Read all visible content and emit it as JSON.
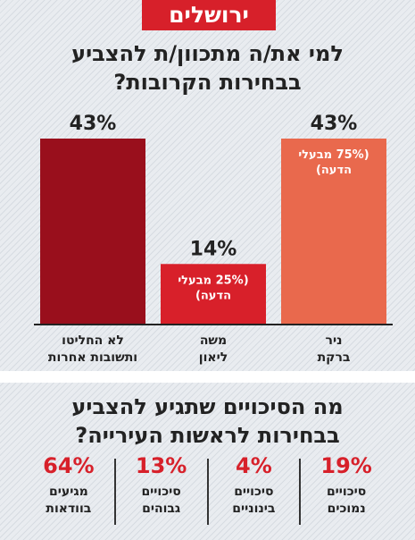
{
  "badge": "ירושלים",
  "question1": {
    "line1": "למי את/ה מתכוון/ת להצביע",
    "line2": "בבחירות הקרובות?"
  },
  "colors": {
    "red_dark": "#990f1c",
    "red": "#d8202a",
    "orange": "#e9694d",
    "accent": "#d7202a"
  },
  "chart_data": {
    "type": "bar",
    "ylim": [
      0,
      50
    ],
    "bars": [
      {
        "category": "לא החליטו\nותשובות אחרות",
        "value": 43,
        "value_label": "43%",
        "note": "",
        "color": "#990f1c"
      },
      {
        "category": "משה\nליאון",
        "value": 14,
        "value_label": "14%",
        "note": "(25% מבעלי\nהדעה)",
        "color": "#d8202a"
      },
      {
        "category": "ניר\nברקת",
        "value": 43,
        "value_label": "43%",
        "note": "(75% מבעלי\nהדעה)",
        "color": "#e9694d"
      }
    ]
  },
  "question2": {
    "line1": "מה הסיכויים שתגיע להצביע",
    "line2": "בבחירות לראשות העירייה?"
  },
  "turnout": [
    {
      "value": 19,
      "pct": "19%",
      "label": "סיכויים\nנמוכים"
    },
    {
      "value": 4,
      "pct": "4%",
      "label": "סיכויים\nבינוניים"
    },
    {
      "value": 13,
      "pct": "13%",
      "label": "סיכויים\nגבוהים"
    },
    {
      "value": 64,
      "pct": "64%",
      "label": "מגיעים\nבוודאות"
    }
  ]
}
